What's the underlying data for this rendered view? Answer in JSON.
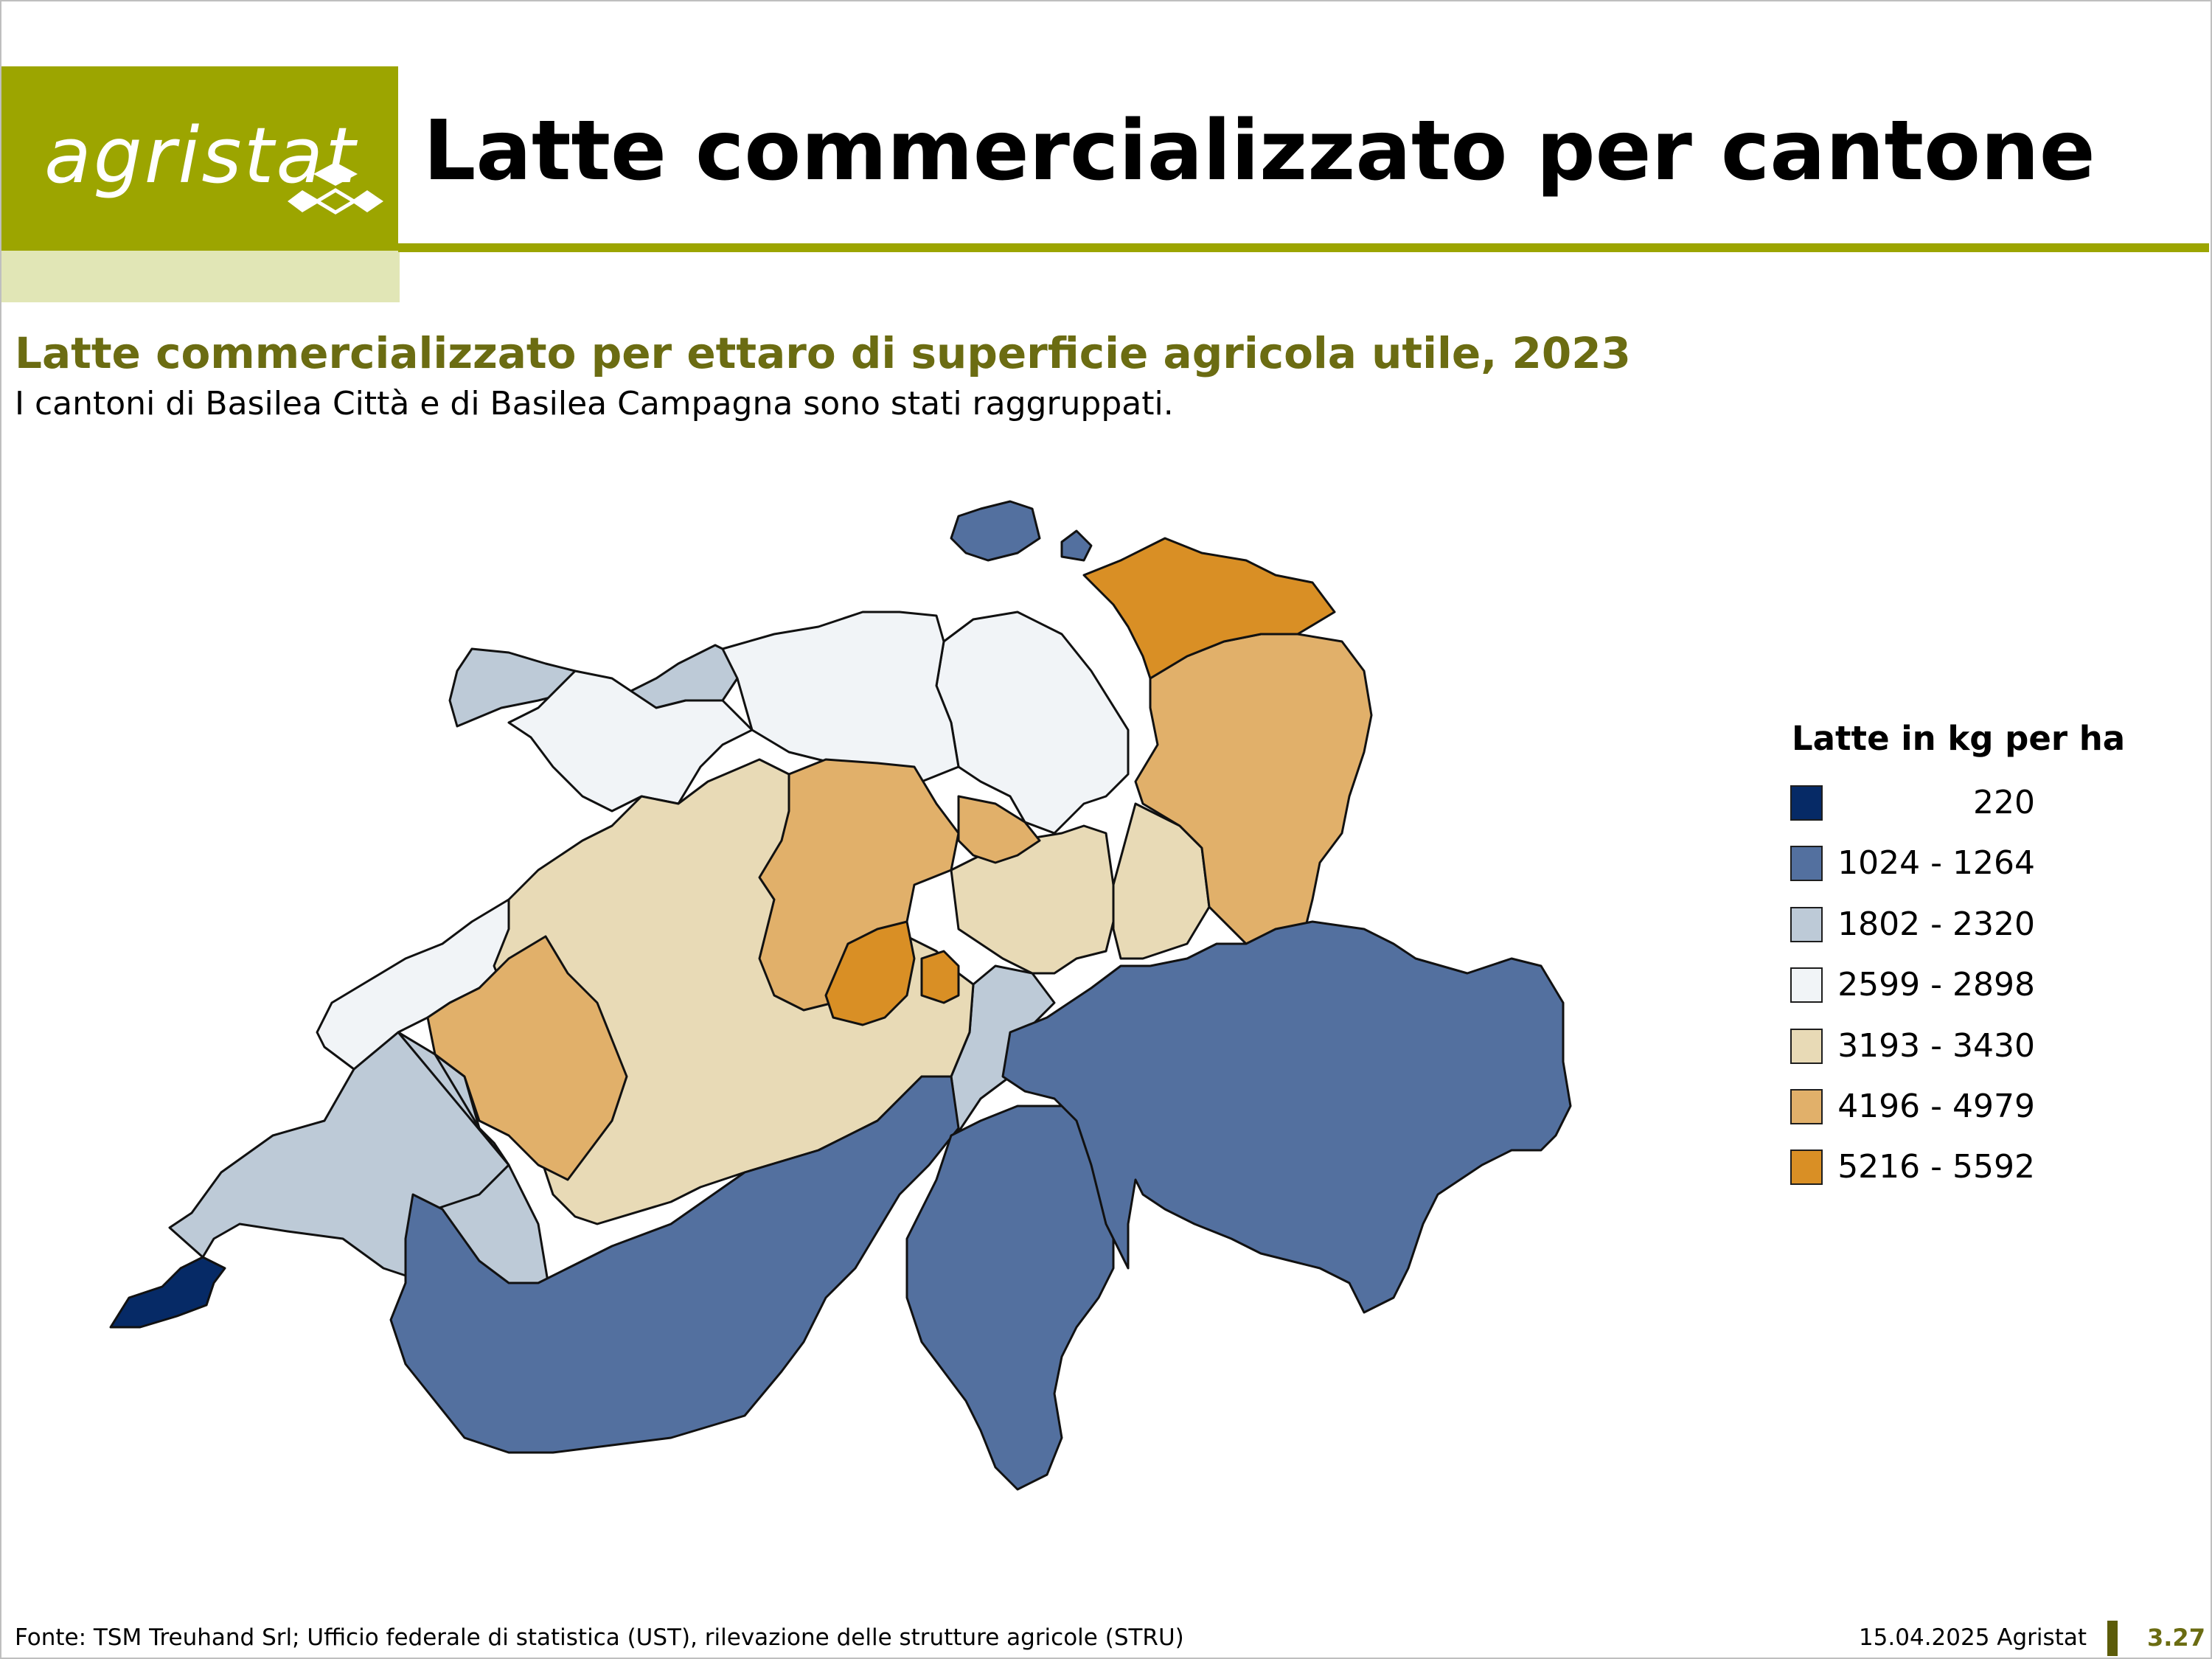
{
  "header": {
    "logo_text": "agristat",
    "title": "Latte commercializzato per cantone",
    "brand_color": "#9ca500"
  },
  "chart_data": {
    "type": "choropleth",
    "title": "Latte commercializzato per ettaro di superficie agricola utile, 2023",
    "subtitle": "I cantoni di Basilea Città e di Basilea Campagna sono stati raggruppati.",
    "legend": {
      "title": "Latte in kg per ha",
      "position": "right",
      "classes": [
        {
          "label": "220",
          "color": "#062a66"
        },
        {
          "label": "1024 - 1264",
          "color": "#53709f"
        },
        {
          "label": "1802 - 2320",
          "color": "#bdcad7"
        },
        {
          "label": "2599 - 2898",
          "color": "#f1f4f7"
        },
        {
          "label": "3193 - 3430",
          "color": "#e8dab6"
        },
        {
          "label": "4196 - 4979",
          "color": "#e1b06a"
        },
        {
          "label": "5216 - 5592",
          "color": "#d98f25"
        }
      ]
    }
  },
  "footer": {
    "source": "Fonte: TSM Treuhand Srl; Ufficio federale di statistica (UST), rilevazione delle strutture agricole (STRU)",
    "date": "15.04.2025 Agristat",
    "page": "3.27"
  }
}
